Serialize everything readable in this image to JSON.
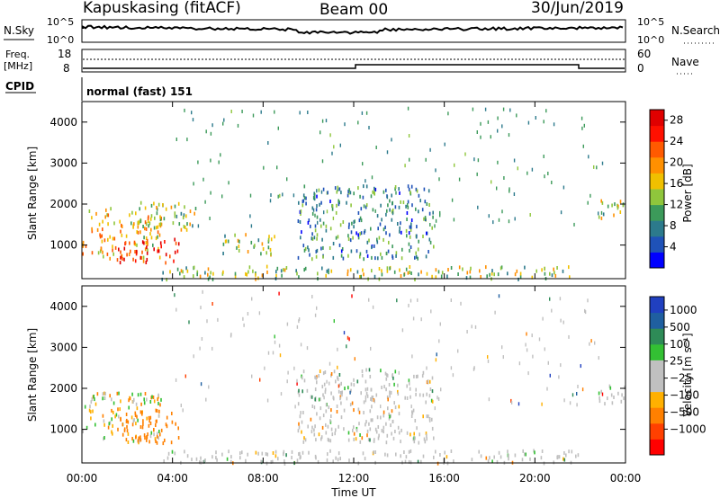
{
  "header": {
    "station": "Kapuskasing (fitACF)",
    "beam": "Beam 00",
    "date": "30/Jun/2019"
  },
  "noise_panel": {
    "left_label": "N.Sky",
    "left_top": "10^5",
    "left_bottom": "10^0",
    "right_label": "N.Search",
    "right_top": "10^5",
    "right_bottom": "10^0"
  },
  "freq_panel": {
    "label_line1": "Freq.",
    "label_line2": "[MHz]",
    "left_top": "18",
    "left_bottom": "8",
    "right_label": "Nave",
    "right_top": "60",
    "right_bottom": "0"
  },
  "cpid": {
    "label": "CPID",
    "value": "normal (fast) 151"
  },
  "colors": {
    "power_scale": [
      "#0000ff",
      "#1f52b8",
      "#2c7a8c",
      "#3c9a5a",
      "#8fc63c",
      "#f0c000",
      "#ff9000",
      "#ff5a00",
      "#ff1000",
      "#e00000"
    ],
    "velocity_scale": [
      "#ff0000",
      "#ff4000",
      "#ff8000",
      "#ffb000",
      "#c0c0c0",
      "#c0c0c0",
      "#33c033",
      "#2e8b57",
      "#1f5fa0",
      "#2040c0"
    ],
    "ground_scatter": "#c0c0c0"
  },
  "chart_data": [
    {
      "type": "heatmap",
      "name": "power",
      "xlabel": "Time UT",
      "ylabel": "Slant Range [km]",
      "x_ticks": [
        "00:00",
        "04:00",
        "08:00",
        "12:00",
        "16:00",
        "20:00",
        "00:00"
      ],
      "xlim": [
        0,
        24
      ],
      "ylim": [
        180,
        4500
      ],
      "y_ticks": [
        "1000",
        "2000",
        "3000",
        "4000"
      ],
      "colorbar": {
        "label": "Power [dB]",
        "ticks": [
          "4",
          "8",
          "12",
          "16",
          "20",
          "24",
          "28"
        ],
        "range": [
          0,
          30
        ]
      },
      "echo_regions": [
        {
          "t0": 0.0,
          "t1": 3.5,
          "r0": 700,
          "r1": 1950,
          "level": 18
        },
        {
          "t0": 1.5,
          "t1": 4.3,
          "r0": 600,
          "r1": 1200,
          "level": 28
        },
        {
          "t0": 2.5,
          "t1": 5.0,
          "r0": 1400,
          "r1": 2100,
          "level": 14
        },
        {
          "t0": 6.0,
          "t1": 8.5,
          "r0": 800,
          "r1": 1300,
          "level": 12
        },
        {
          "t0": 3.5,
          "t1": 22.0,
          "r0": 200,
          "r1": 520,
          "level": 14
        },
        {
          "t0": 9.5,
          "t1": 15.5,
          "r0": 700,
          "r1": 2500,
          "level": 8
        },
        {
          "t0": 22.8,
          "t1": 24.0,
          "r0": 1650,
          "r1": 2200,
          "level": 14
        }
      ]
    },
    {
      "type": "heatmap",
      "name": "velocity",
      "xlabel": "Time UT",
      "ylabel": "Slant Range [km]",
      "x_ticks": [
        "00:00",
        "04:00",
        "08:00",
        "12:00",
        "16:00",
        "20:00",
        "00:00"
      ],
      "xlim": [
        0,
        24
      ],
      "ylim": [
        180,
        4500
      ],
      "y_ticks": [
        "1000",
        "2000",
        "3000",
        "4000"
      ],
      "colorbar": {
        "label": "Velocity [m s⁻¹]",
        "ticks": [
          "1000",
          "500",
          "100",
          "25",
          "−25",
          "−100",
          "−500",
          "−1000"
        ]
      },
      "echo_regions": [
        {
          "t0": 0.0,
          "t1": 3.5,
          "r0": 700,
          "r1": 1950,
          "level": -25
        },
        {
          "t0": 1.5,
          "t1": 4.3,
          "r0": 700,
          "r1": 1500,
          "level": -300
        },
        {
          "t0": 3.5,
          "t1": 22.0,
          "r0": 200,
          "r1": 520,
          "level": 0
        },
        {
          "t0": 9.5,
          "t1": 15.5,
          "r0": 700,
          "r1": 2500,
          "level": 0
        },
        {
          "t0": 22.8,
          "t1": 24.0,
          "r0": 1650,
          "r1": 2200,
          "level": 0
        }
      ]
    }
  ]
}
